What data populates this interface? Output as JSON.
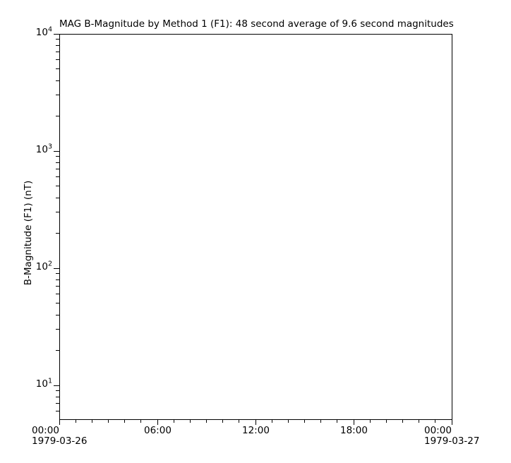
{
  "chart_data": {
    "type": "line",
    "title": "MAG  B-Magnitude by Method 1 (F1): 48 second average of 9.6 second magnitudes",
    "xlabel": "",
    "ylabel": "B-Magnitude (F1) (nT)",
    "legend": null,
    "grid": false,
    "series": [],
    "y_axis": {
      "scale": "log",
      "range": [
        5.14,
        10000
      ],
      "major_ticks": [
        {
          "value": 10,
          "base": "10",
          "exp": "1"
        },
        {
          "value": 100,
          "base": "10",
          "exp": "2"
        },
        {
          "value": 1000,
          "base": "10",
          "exp": "3"
        },
        {
          "value": 10000,
          "base": "10",
          "exp": "4"
        }
      ],
      "minor_mantissas": [
        2,
        3,
        4,
        5,
        6,
        7,
        8,
        9
      ]
    },
    "x_axis": {
      "range_hours": [
        0,
        24
      ],
      "minor_interval_hours": 1,
      "major_ticks": [
        {
          "hour": 0,
          "label": "00:00",
          "date": "1979-03-26"
        },
        {
          "hour": 6,
          "label": "06:00"
        },
        {
          "hour": 12,
          "label": "12:00"
        },
        {
          "hour": 18,
          "label": "18:00"
        },
        {
          "hour": 24,
          "label": "00:00",
          "date": "1979-03-27"
        }
      ]
    },
    "colors": {
      "background": "#ffffff",
      "axis": "#000000",
      "text": "#000000"
    }
  }
}
